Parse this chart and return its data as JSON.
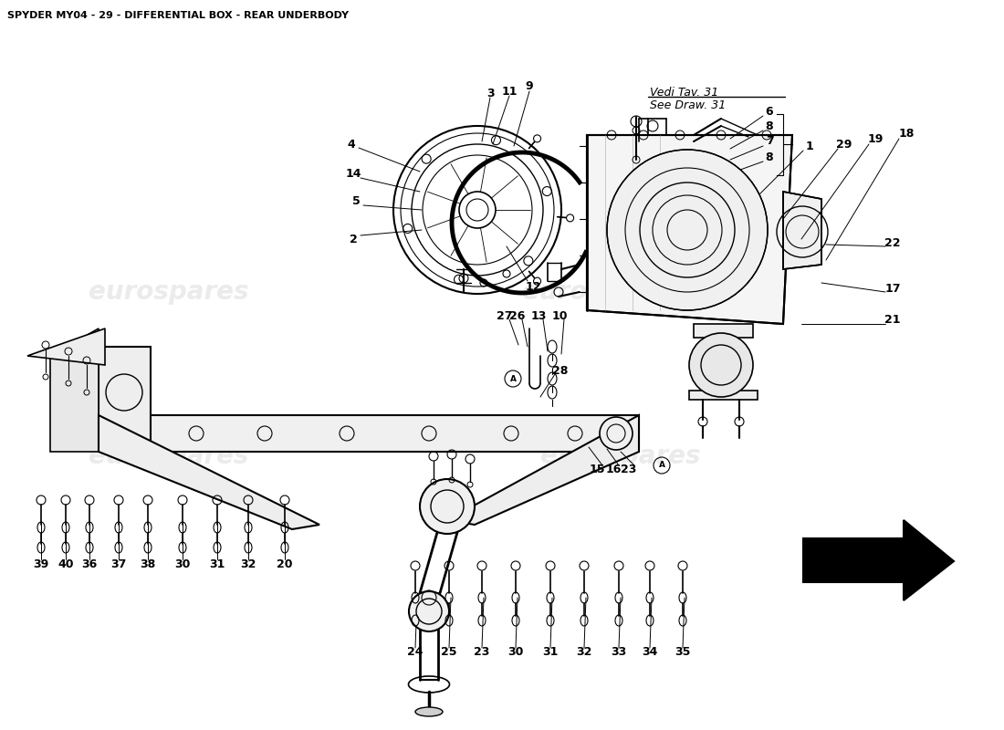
{
  "title": "SPYDER MY04 - 29 - DIFFERENTIAL BOX - REAR UNDERBODY",
  "background_color": "#ffffff",
  "line_color": "#000000",
  "watermark_color": "#c8c8c8",
  "watermark_alpha": 0.35,
  "title_fontsize": 8,
  "label_fontsize": 9,
  "vedi_line1": "Vedi Tav. 31",
  "vedi_line2": "See Draw. 31"
}
